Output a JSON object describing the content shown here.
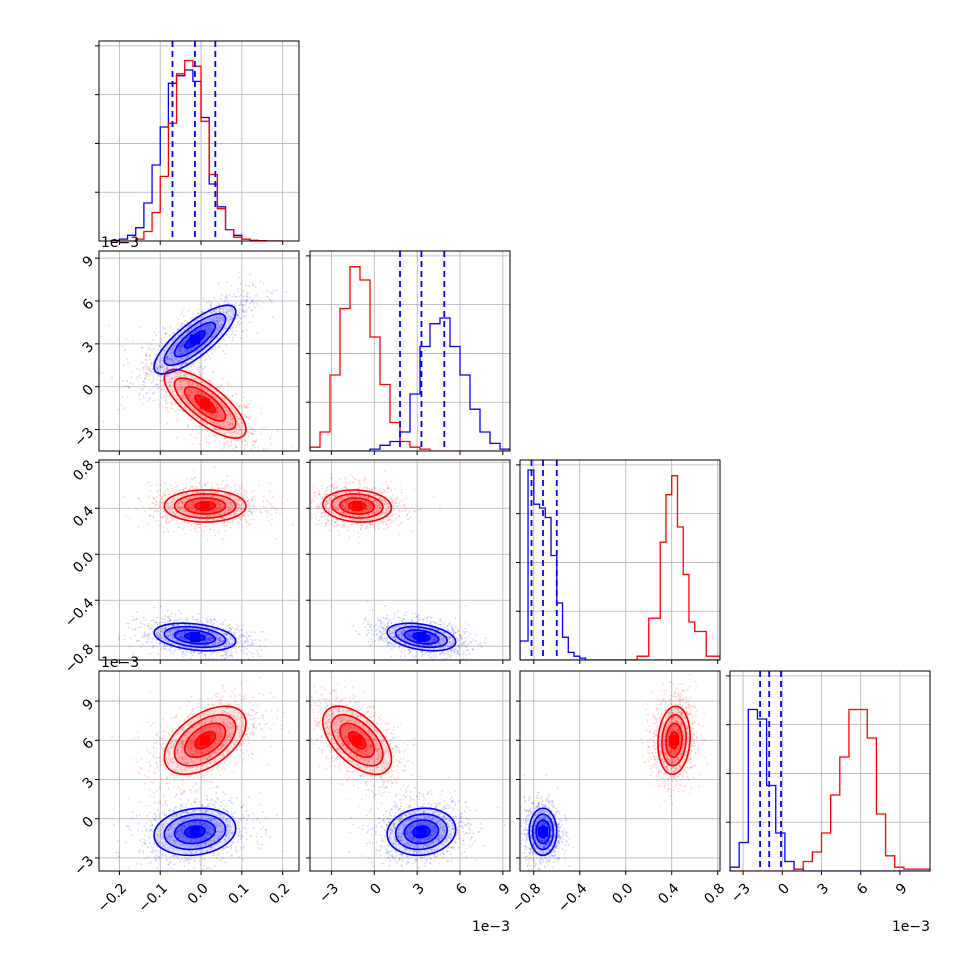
{
  "chart_data": {
    "type": "corner",
    "grid": true,
    "colors": {
      "series_blue": "#0000ff",
      "series_red": "#ff0000",
      "grid": "#b0b0b0"
    },
    "series": [
      {
        "name": "",
        "color": "#0000ff"
      },
      {
        "name": "",
        "color": "#ff0000"
      }
    ],
    "params": [
      {
        "range": [
          -0.25,
          0.24
        ],
        "ticks": [
          -0.2,
          -0.1,
          0.0,
          0.1,
          0.2
        ],
        "tick_labels": [
          "−0.2",
          "−0.1",
          "0.0",
          "0.1",
          "0.2"
        ],
        "offset": ""
      },
      {
        "range": [
          -0.0045,
          0.0095
        ],
        "ticks": [
          -0.003,
          0.0,
          0.003,
          0.006,
          0.009
        ],
        "tick_labels": [
          "−3",
          "0",
          "3",
          "6",
          "9"
        ],
        "offset": "1e−3"
      },
      {
        "range": [
          -0.92,
          0.82
        ],
        "ticks": [
          -0.8,
          -0.4,
          0.0,
          0.4,
          0.8
        ],
        "tick_labels": [
          "−0.8",
          "−0.4",
          "0.0",
          "0.4",
          "0.8"
        ],
        "offset": ""
      },
      {
        "range": [
          -0.004,
          0.0113
        ],
        "ticks": [
          -0.003,
          0.0,
          0.003,
          0.006,
          0.009
        ],
        "tick_labels": [
          "−3",
          "0",
          "3",
          "6",
          "9"
        ],
        "offset": "1e−3"
      }
    ],
    "histograms": [
      {
        "quantile_lines": [
          -0.07,
          -0.015,
          0.035
        ],
        "bins": [
          -0.22,
          -0.2,
          -0.18,
          -0.16,
          -0.14,
          -0.12,
          -0.1,
          -0.08,
          -0.06,
          -0.04,
          -0.02,
          0.0,
          0.02,
          0.04,
          0.06,
          0.08,
          0.1,
          0.12,
          0.14,
          0.16,
          0.18,
          0.2
        ],
        "blue": [
          0.003,
          0.01,
          0.03,
          0.07,
          0.2,
          0.4,
          0.6,
          0.83,
          0.87,
          0.9,
          0.84,
          0.65,
          0.3,
          0.18,
          0.06,
          0.03,
          0.01,
          0.002,
          0,
          0,
          0
        ],
        "red": [
          0,
          0,
          0,
          0.01,
          0.05,
          0.15,
          0.34,
          0.62,
          0.88,
          0.95,
          0.92,
          0.63,
          0.35,
          0.17,
          0.06,
          0.02,
          0.01,
          0.004,
          0.002,
          0,
          0
        ]
      },
      {
        "quantile_lines": [
          0.0018,
          0.0033,
          0.0049
        ],
        "bins": [
          -0.0045,
          -0.0038,
          -0.0031,
          -0.0024,
          -0.0017,
          -0.001,
          -0.0003,
          0.0004,
          0.0011,
          0.0018,
          0.0025,
          0.0032,
          0.0039,
          0.0046,
          0.0053,
          0.006,
          0.0067,
          0.0074,
          0.0081,
          0.0088,
          0.0095
        ],
        "blue": [
          0,
          0,
          0,
          0,
          0,
          0,
          0.01,
          0.03,
          0.05,
          0.1,
          0.3,
          0.55,
          0.67,
          0.7,
          0.55,
          0.4,
          0.22,
          0.1,
          0.04,
          0.01
        ],
        "red": [
          0.02,
          0.1,
          0.4,
          0.75,
          0.97,
          0.9,
          0.6,
          0.35,
          0.15,
          0.05,
          0.02,
          0.01,
          0,
          0,
          0,
          0,
          0,
          0,
          0,
          0
        ]
      },
      {
        "quantile_lines": [
          -0.82,
          -0.72,
          -0.6
        ],
        "bins": [
          -0.92,
          -0.85,
          -0.8,
          -0.75,
          -0.7,
          -0.65,
          -0.6,
          -0.55,
          -0.5,
          -0.45,
          -0.4,
          -0.35,
          -0.2,
          0.1,
          0.2,
          0.3,
          0.35,
          0.4,
          0.45,
          0.5,
          0.55,
          0.6,
          0.7,
          0.82
        ],
        "blue": [
          0.1,
          1.0,
          0.82,
          0.8,
          0.75,
          0.55,
          0.3,
          0.12,
          0.04,
          0.02,
          0.01,
          0,
          0,
          0,
          0,
          0,
          0,
          0,
          0,
          0,
          0,
          0,
          0
        ],
        "red": [
          0,
          0,
          0,
          0,
          0,
          0,
          0,
          0,
          0,
          0,
          0,
          0,
          0,
          0.02,
          0.22,
          0.62,
          0.87,
          0.97,
          0.7,
          0.45,
          0.2,
          0.15,
          0.02
        ]
      },
      {
        "quantile_lines": [
          -0.0017,
          -0.001,
          -0.0001
        ],
        "bins": [
          -0.004,
          -0.0033,
          -0.0026,
          -0.0019,
          -0.0012,
          -0.0005,
          0.0002,
          0.0009,
          0.0016,
          0.0023,
          0.003,
          0.0037,
          0.0044,
          0.0051,
          0.0058,
          0.0065,
          0.0072,
          0.0079,
          0.0086,
          0.0093,
          0.0113
        ],
        "blue": [
          0.02,
          0.15,
          0.85,
          0.8,
          0.45,
          0.2,
          0.05,
          0.01,
          0,
          0,
          0,
          0,
          0,
          0,
          0,
          0,
          0,
          0,
          0,
          0
        ],
        "red": [
          0,
          0,
          0,
          0,
          0,
          0,
          0,
          0.01,
          0.05,
          0.1,
          0.2,
          0.4,
          0.6,
          0.85,
          0.85,
          0.7,
          0.3,
          0.08,
          0.02,
          0.01
        ]
      }
    ],
    "distributions_2d": {
      "blue": {
        "mean": [
          -0.015,
          0.0033,
          -0.72,
          -0.001
        ],
        "sd": [
          0.05,
          0.0012,
          0.06,
          0.0009
        ],
        "corr": [
          [
            0,
            1,
            0.8
          ],
          [
            0,
            2,
            -0.3
          ],
          [
            0,
            3,
            0.15
          ],
          [
            1,
            2,
            -0.35
          ],
          [
            1,
            3,
            0.1
          ],
          [
            2,
            3,
            0.0
          ]
        ]
      },
      "red": {
        "mean": [
          0.01,
          -0.0012,
          0.42,
          0.006
        ],
        "sd": [
          0.05,
          0.0012,
          0.07,
          0.0013
        ],
        "corr": [
          [
            0,
            1,
            -0.75
          ],
          [
            0,
            2,
            0.0
          ],
          [
            0,
            3,
            0.5
          ],
          [
            1,
            2,
            -0.1
          ],
          [
            1,
            3,
            -0.55
          ],
          [
            2,
            3,
            0.1
          ]
        ]
      }
    }
  }
}
